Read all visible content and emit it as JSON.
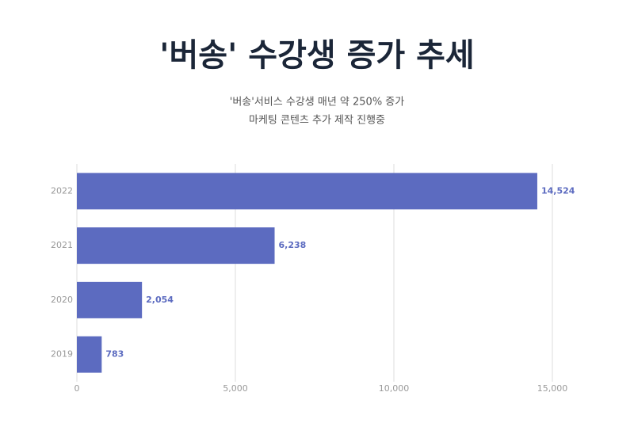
{
  "chart_data": {
    "type": "bar",
    "orientation": "horizontal",
    "title": "'버송' 수강생 증가 추세",
    "subtitle": [
      "'버송'서비스 수강생 매년 약 250% 증가",
      "마케팅 콘텐츠 추가 제작 진행중"
    ],
    "categories": [
      "2022",
      "2021",
      "2020",
      "2019"
    ],
    "values": [
      14524,
      6238,
      2054,
      783
    ],
    "value_labels": [
      "14,524",
      "6,238",
      "2,054",
      "783"
    ],
    "color": "#5c6bc0",
    "xlim": [
      0,
      15000
    ],
    "xticks": [
      0,
      {
        "value": 5000,
        "label": "5,000"
      },
      {
        "value": 10000,
        "label": "10,000"
      },
      {
        "value": 15000,
        "label": "15,000"
      }
    ],
    "grid": true
  }
}
